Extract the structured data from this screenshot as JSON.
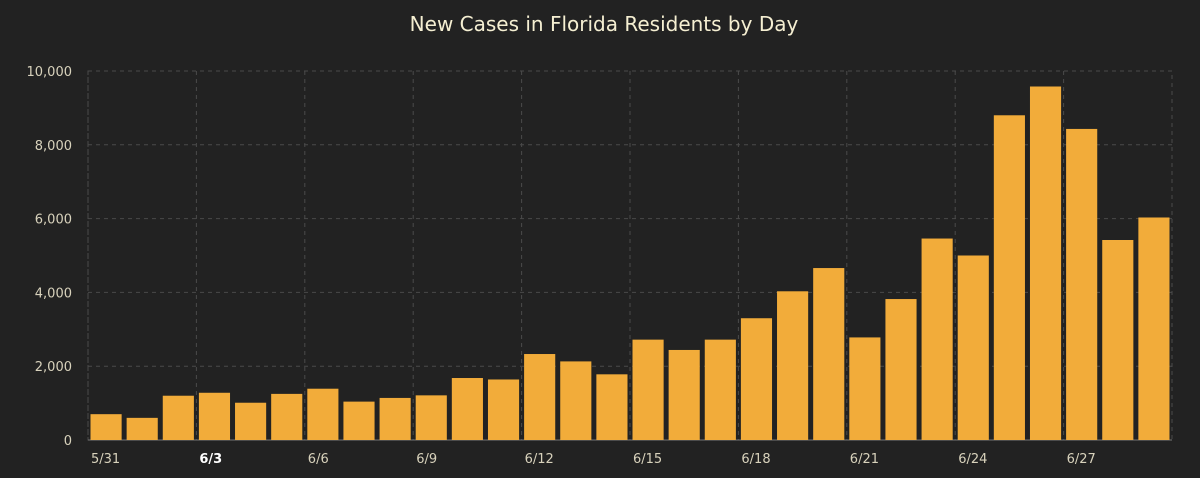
{
  "chart_data": {
    "type": "bar",
    "title": "New Cases in Florida Residents by Day",
    "xlabel": "",
    "ylabel": "",
    "ylim": [
      0,
      10000
    ],
    "yticks": [
      0,
      2000,
      4000,
      6000,
      8000,
      10000
    ],
    "ytick_labels": [
      "0",
      "2,000",
      "4,000",
      "6,000",
      "8,000",
      "10,000"
    ],
    "categories": [
      "5/31",
      "6/1",
      "6/2",
      "6/3",
      "6/4",
      "6/5",
      "6/6",
      "6/7",
      "6/8",
      "6/9",
      "6/10",
      "6/11",
      "6/12",
      "6/13",
      "6/14",
      "6/15",
      "6/16",
      "6/17",
      "6/18",
      "6/19",
      "6/20",
      "6/21",
      "6/22",
      "6/23",
      "6/24",
      "6/25",
      "6/26",
      "6/27",
      "6/28",
      "6/29"
    ],
    "values": [
      700,
      600,
      1200,
      1280,
      1010,
      1250,
      1390,
      1040,
      1140,
      1210,
      1680,
      1640,
      2330,
      2130,
      1780,
      2720,
      2440,
      2720,
      3300,
      4030,
      4660,
      2780,
      3820,
      5460,
      5000,
      8800,
      9580,
      8430,
      5420,
      6030
    ],
    "xtick_labels": [
      {
        "label": "5/31",
        "index": 0,
        "bold": false
      },
      {
        "label": "6/3",
        "index": 3,
        "bold": true
      },
      {
        "label": "6/6",
        "index": 6,
        "bold": false
      },
      {
        "label": "6/9",
        "index": 9,
        "bold": false
      },
      {
        "label": "6/12",
        "index": 12,
        "bold": false
      },
      {
        "label": "6/15",
        "index": 15,
        "bold": false
      },
      {
        "label": "6/18",
        "index": 18,
        "bold": false
      },
      {
        "label": "6/21",
        "index": 21,
        "bold": false
      },
      {
        "label": "6/24",
        "index": 24,
        "bold": false
      },
      {
        "label": "6/27",
        "index": 27,
        "bold": false
      }
    ],
    "grid": true,
    "colors": {
      "bar": "#f2ac3a",
      "background": "#222222"
    }
  }
}
